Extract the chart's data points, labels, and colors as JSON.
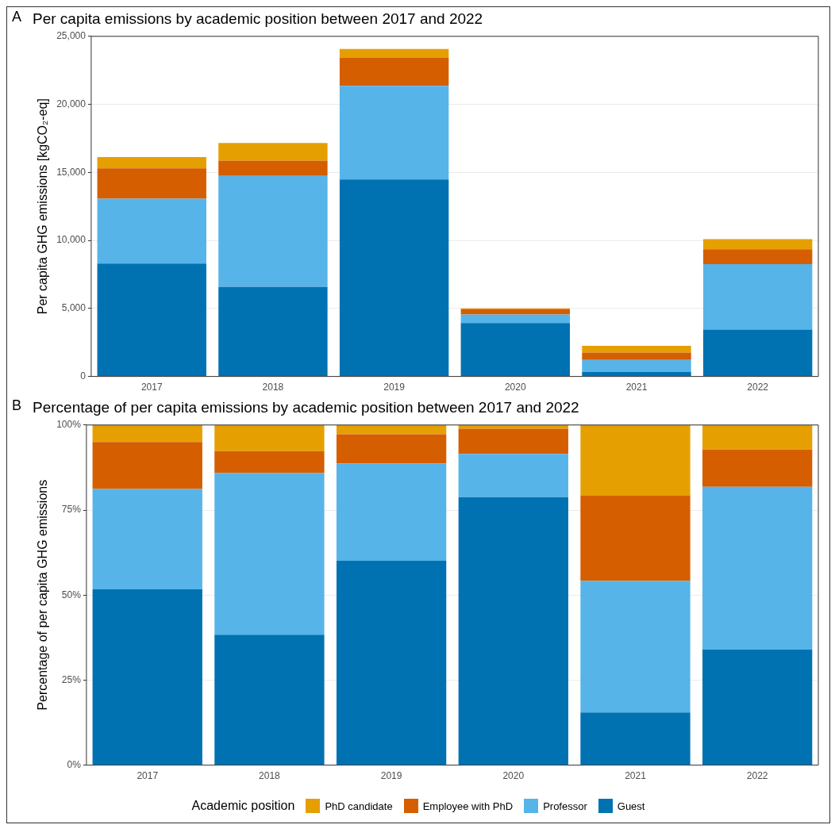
{
  "chart_data": [
    {
      "type": "bar",
      "title": "Per capita emissions by academic position between 2017 and 2022",
      "ylabel": "Per capita GHG emissions [kgCO₂-eq]",
      "annotations": [
        "A"
      ],
      "stacked": true,
      "grid": "y",
      "legend": false,
      "categories": [
        "2017",
        "2018",
        "2019",
        "2020",
        "2021",
        "2022"
      ],
      "ylim": [
        0,
        25000
      ],
      "yticks": [
        {
          "value": 0,
          "label": "0"
        },
        {
          "value": 5000,
          "label": "5,000"
        },
        {
          "value": 10000,
          "label": "10,000"
        },
        {
          "value": 15000,
          "label": "15,000"
        },
        {
          "value": 20000,
          "label": "20,000"
        },
        {
          "value": 25000,
          "label": "25,000"
        }
      ],
      "series": [
        {
          "color": "#0072b2",
          "values": [
            8300,
            6580,
            14480,
            3920,
            320,
            3440
          ]
        },
        {
          "color": "#56b4e9",
          "values": [
            4770,
            8160,
            6880,
            630,
            890,
            4810
          ]
        },
        {
          "color": "#d55e00",
          "values": [
            2230,
            1130,
            2060,
            410,
            540,
            1100
          ]
        },
        {
          "color": "#e69f00",
          "values": [
            830,
            1290,
            650,
            50,
            500,
            740
          ]
        }
      ]
    },
    {
      "type": "bar",
      "title": "Percentage of per capita emissions by academic position between 2017 and 2022",
      "ylabel": "Percentage of per capita GHG emissions",
      "annotations": [
        "B"
      ],
      "stacked": true,
      "grid": "y",
      "legend": "bottom",
      "legend_title": "Academic position",
      "categories": [
        "2017",
        "2018",
        "2019",
        "2020",
        "2021",
        "2022"
      ],
      "ylim": [
        0,
        100
      ],
      "yticks": [
        {
          "value": 0,
          "label": "0%"
        },
        {
          "value": 25,
          "label": "25%"
        },
        {
          "value": 50,
          "label": "50%"
        },
        {
          "value": 75,
          "label": "75%"
        },
        {
          "value": 100,
          "label": "100%"
        }
      ],
      "series": [
        {
          "name": "Guest",
          "color": "#0072b2",
          "values": [
            51.7,
            38.3,
            60.1,
            78.8,
            15.5,
            34.0
          ]
        },
        {
          "name": "Professor",
          "color": "#56b4e9",
          "values": [
            29.5,
            47.6,
            28.6,
            12.7,
            38.7,
            47.8
          ]
        },
        {
          "name": "Employee with PhD",
          "color": "#d55e00",
          "values": [
            13.8,
            6.4,
            8.6,
            7.4,
            25.0,
            11.0
          ]
        },
        {
          "name": "PhD candidate",
          "color": "#e69f00",
          "values": [
            5.0,
            7.7,
            2.7,
            1.1,
            20.8,
            7.2
          ]
        }
      ]
    }
  ]
}
